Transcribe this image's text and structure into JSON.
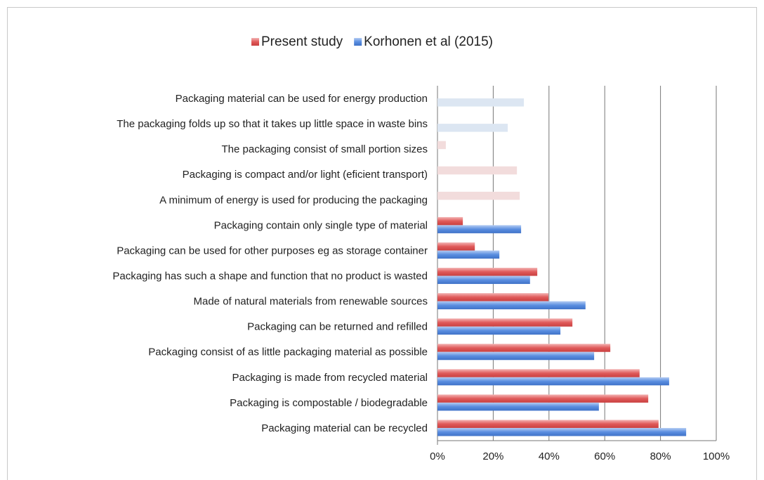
{
  "chart_data": {
    "type": "hbar",
    "categories": [
      "Packaging material can be used for energy production",
      "The packaging folds up so that it takes up little space in waste bins",
      "The packaging consist of small portion sizes",
      "Packaging is compact and/or light (eficient transport)",
      "A minimum of energy is used for producing the packaging",
      "Packaging contain only single type of material",
      "Packaging can be used for other purposes eg as storage container",
      "Packaging has such a shape and function that no product is wasted",
      "Made of natural materials from renewable sources",
      "Packaging can be returned and refilled",
      "Packaging consist of as little packaging material as possible",
      "Packaging is made from recycled material",
      "Packaging is compostable / biodegradable",
      "Packaging material can be recycled"
    ],
    "series": [
      {
        "name": "Present study",
        "color": "#e05a5a",
        "light_color": "#f2dcdc",
        "values": [
          null,
          null,
          3.0,
          28.5,
          29.5,
          9.1,
          13.4,
          35.8,
          39.8,
          48.4,
          62.0,
          72.5,
          75.6,
          79.3
        ]
      },
      {
        "name": "Korhonen et al (2015)",
        "color": "#5a8ee0",
        "light_color": "#dce6f2",
        "values": [
          31.0,
          25.2,
          null,
          null,
          null,
          30.0,
          22.2,
          33.2,
          53.1,
          44.1,
          56.2,
          83.1,
          57.9,
          89.2
        ]
      }
    ],
    "faded_categories": [
      0,
      1,
      2,
      3,
      4
    ],
    "xlim": [
      0,
      100
    ],
    "xticks": [
      {
        "value": 0,
        "label": "0%"
      },
      {
        "value": 20,
        "label": "20%"
      },
      {
        "value": 40,
        "label": "40%"
      },
      {
        "value": 60,
        "label": "60%"
      },
      {
        "value": 80,
        "label": "80%"
      },
      {
        "value": 100,
        "label": "100%"
      }
    ],
    "grid": true,
    "legend": "top"
  }
}
